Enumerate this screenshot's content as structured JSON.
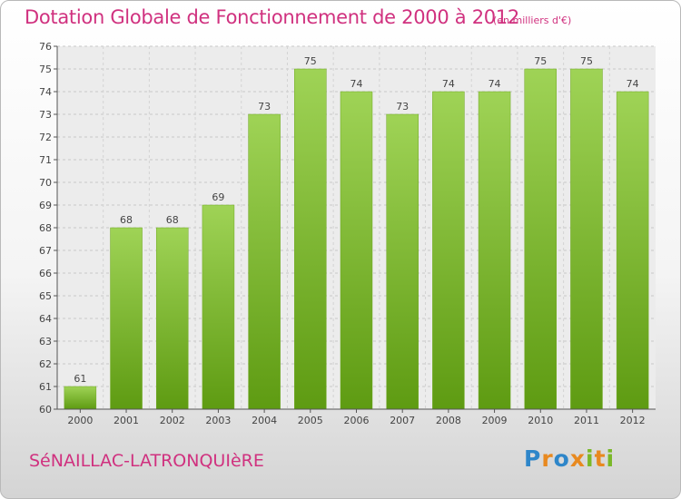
{
  "header": {
    "title": "Dotation Globale de Fonctionnement de 2000 à 2012",
    "unit": "(en milliers d'€)"
  },
  "footer": {
    "commune": "SéNAILLAC-LATRONQUIèRE",
    "logo_text": "Proxiti"
  },
  "colors": {
    "title": "#d0317f",
    "bar_top": "#9fd356",
    "bar_bottom": "#5e9b12",
    "logo_letters": [
      "#2e86c9",
      "#e8891f",
      "#2e86c9",
      "#e8891f",
      "#7ab828",
      "#e8891f",
      "#7ab828"
    ]
  },
  "chart_data": {
    "type": "bar",
    "categories": [
      "2000",
      "2001",
      "2002",
      "2003",
      "2004",
      "2005",
      "2006",
      "2007",
      "2008",
      "2009",
      "2010",
      "2011",
      "2012"
    ],
    "values": [
      61,
      68,
      68,
      69,
      73,
      75,
      74,
      73,
      74,
      74,
      75,
      75,
      74
    ],
    "ylim": [
      60,
      76
    ],
    "yticks": [
      60,
      61,
      62,
      63,
      64,
      65,
      66,
      67,
      68,
      69,
      70,
      71,
      72,
      73,
      74,
      75,
      76
    ],
    "grid": true,
    "title": "Dotation Globale de Fonctionnement de 2000 à 2012",
    "xlabel": "",
    "ylabel": ""
  }
}
